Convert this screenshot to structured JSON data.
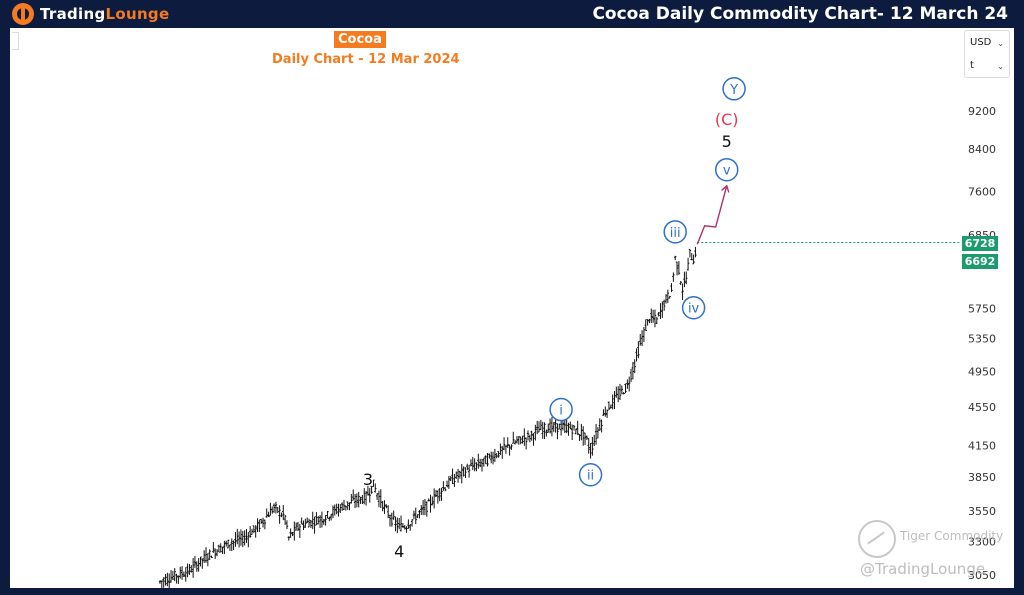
{
  "header": {
    "logo_prefix": "Trading",
    "logo_suffix": "Lounge",
    "title": "Cocoa Daily Commodity Chart- 12 March 24"
  },
  "chart_header": {
    "title": "Cocoa",
    "subtitle": "Daily Chart - 12 Mar 2024"
  },
  "currency_box": {
    "currency": "USD",
    "unit": "t"
  },
  "price_tags": {
    "last_price": "6728",
    "second_price": "6692"
  },
  "watermark": {
    "line1": "Tiger Commodity",
    "line2": "@TradingLounge"
  },
  "colors": {
    "brand_orange": "#f47b20",
    "header_bg": "#0d1b3e",
    "wave_blue": "#2f6fd0",
    "wave_red": "#e53950",
    "projection_magenta": "#b0306e",
    "price_green": "#1c9b6e"
  },
  "chart_data": {
    "type": "ohlc",
    "title": "Cocoa",
    "subtitle": "Daily Chart - 12 Mar 2024",
    "xlabel": "",
    "ylabel": "",
    "y_scale": "log",
    "grid": false,
    "yticks": [
      "9200",
      "8400",
      "7600",
      "6850",
      "5750",
      "5350",
      "4950",
      "4550",
      "4150",
      "3850",
      "3550",
      "3300",
      "3050"
    ],
    "ylim": [
      3000,
      10200
    ],
    "price_path": [
      [
        0,
        3000
      ],
      [
        8,
        3040
      ],
      [
        16,
        3080
      ],
      [
        22,
        3150
      ],
      [
        30,
        3230
      ],
      [
        38,
        3290
      ],
      [
        46,
        3330
      ],
      [
        54,
        3430
      ],
      [
        62,
        3580
      ],
      [
        68,
        3500
      ],
      [
        70,
        3330
      ],
      [
        76,
        3430
      ],
      [
        82,
        3460
      ],
      [
        90,
        3500
      ],
      [
        98,
        3580
      ],
      [
        106,
        3640
      ],
      [
        112,
        3670
      ],
      [
        116,
        3780
      ],
      [
        118,
        3700
      ],
      [
        122,
        3580
      ],
      [
        126,
        3480
      ],
      [
        130,
        3420
      ],
      [
        134,
        3430
      ],
      [
        140,
        3520
      ],
      [
        146,
        3600
      ],
      [
        152,
        3720
      ],
      [
        160,
        3840
      ],
      [
        168,
        3930
      ],
      [
        176,
        3990
      ],
      [
        184,
        4080
      ],
      [
        192,
        4170
      ],
      [
        198,
        4220
      ],
      [
        202,
        4250
      ],
      [
        206,
        4310
      ],
      [
        212,
        4330
      ],
      [
        218,
        4340
      ],
      [
        224,
        4320
      ],
      [
        230,
        4260
      ],
      [
        232,
        4200
      ],
      [
        234,
        4100
      ],
      [
        238,
        4300
      ],
      [
        242,
        4500
      ],
      [
        248,
        4650
      ],
      [
        254,
        4780
      ],
      [
        258,
        5050
      ],
      [
        262,
        5360
      ],
      [
        266,
        5630
      ],
      [
        270,
        5590
      ],
      [
        274,
        5830
      ],
      [
        278,
        6000
      ],
      [
        280,
        6480
      ],
      [
        282,
        6300
      ],
      [
        284,
        6020
      ],
      [
        286,
        6180
      ],
      [
        288,
        6550
      ],
      [
        290,
        6460
      ],
      [
        292,
        6700
      ]
    ],
    "projection": [
      [
        292,
        6700
      ],
      [
        296,
        7000
      ],
      [
        302,
        6980
      ],
      [
        308,
        7700
      ]
    ],
    "wave_labels": [
      {
        "label": "3",
        "x": 113,
        "price": 3820,
        "style": "plain"
      },
      {
        "label": "4",
        "x": 130,
        "price": 3220,
        "style": "plain"
      },
      {
        "label": "i",
        "x": 218,
        "price": 4520,
        "style": "circle"
      },
      {
        "label": "ii",
        "x": 234,
        "price": 3870,
        "style": "circle"
      },
      {
        "label": "iii",
        "x": 280,
        "price": 6900,
        "style": "circle"
      },
      {
        "label": "iv",
        "x": 290,
        "price": 5760,
        "style": "circle"
      },
      {
        "label": "v",
        "x": 308,
        "price": 8000,
        "style": "circle"
      },
      {
        "label": "5",
        "x": 308,
        "price": 8550,
        "style": "plain"
      },
      {
        "label": "(C)",
        "x": 308,
        "price": 9000,
        "style": "red"
      },
      {
        "label": "Y",
        "x": 312,
        "price": 9700,
        "style": "circle"
      }
    ],
    "last_price_line": 6728
  }
}
